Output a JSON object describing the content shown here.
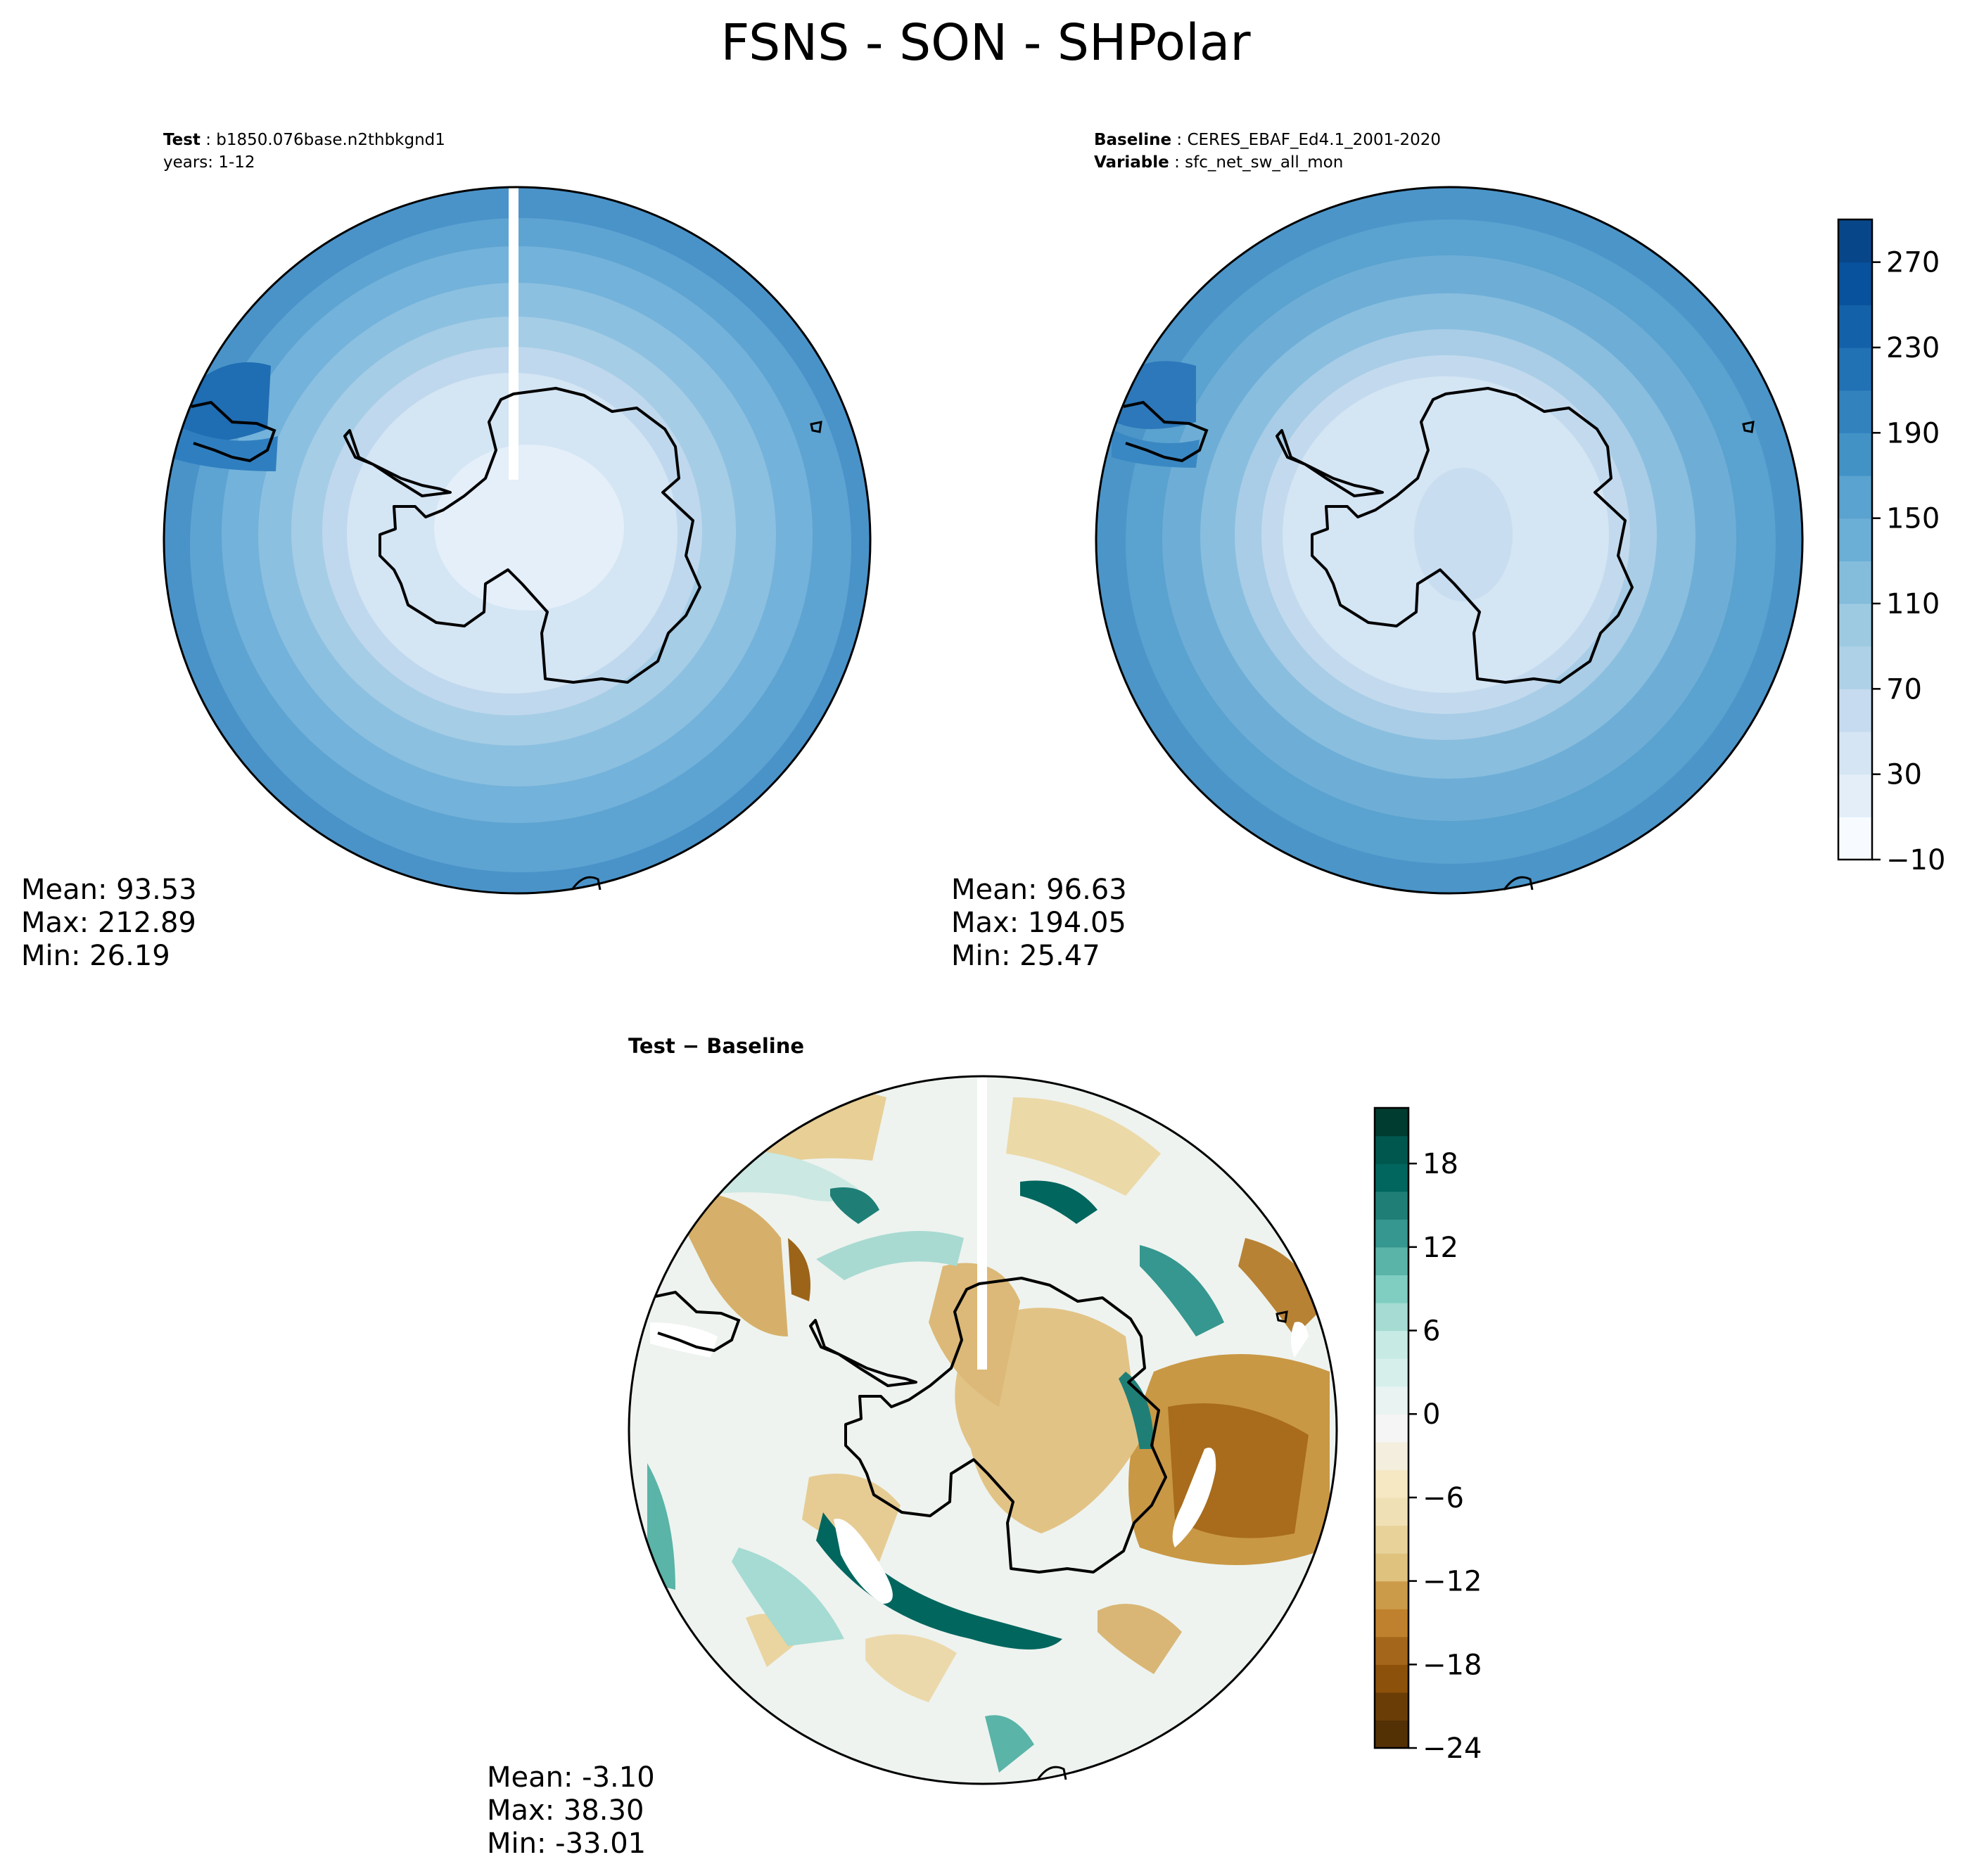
{
  "title": "FSNS - SON - SHPolar",
  "panels": {
    "test": {
      "label_key": "Test",
      "label_value": "b1850.076base.n2thbkgnd1",
      "years": "years: 1-12",
      "stats": {
        "mean": "Mean: 93.53",
        "max": "Max: 212.89",
        "min": "Min: 26.19"
      }
    },
    "baseline": {
      "label_key": "Baseline",
      "label_value": "CERES_EBAF_Ed4.1_2001-2020",
      "variable_key": "Variable",
      "variable_value": "sfc_net_sw_all_mon",
      "stats": {
        "mean": "Mean: 96.63",
        "max": "Max: 194.05",
        "min": "Min: 25.47"
      }
    },
    "diff": {
      "title": "Test − Baseline",
      "stats": {
        "mean": "Mean: -3.10",
        "max": "Max: 38.30",
        "min": "Min: -33.01"
      }
    }
  },
  "chart_data": [
    {
      "type": "heatmap",
      "projection": "south-polar-stereographic",
      "title": "Test",
      "colormap": "Blues",
      "stats": {
        "mean": 93.53,
        "max": 212.89,
        "min": 26.19
      }
    },
    {
      "type": "heatmap",
      "projection": "south-polar-stereographic",
      "title": "Baseline",
      "colormap": "Blues",
      "stats": {
        "mean": 96.63,
        "max": 194.05,
        "min": 25.47
      },
      "colorbar": {
        "range": [
          -10,
          290
        ],
        "levels": [
          -10,
          10,
          30,
          50,
          70,
          90,
          110,
          130,
          150,
          170,
          190,
          210,
          230,
          250,
          270,
          290
        ],
        "ticks": [
          -10,
          30,
          70,
          110,
          150,
          190,
          230,
          270
        ],
        "tick_labels": [
          "−10",
          "30",
          "70",
          "110",
          "150",
          "190",
          "230",
          "270"
        ],
        "colors": [
          "#f7fbff",
          "#e3eef9",
          "#d5e5f4",
          "#c6dbef",
          "#afd1e7",
          "#9ecae1",
          "#84bcdb",
          "#6baed6",
          "#5aa2cf",
          "#4292c6",
          "#3282be",
          "#2171b5",
          "#1361a9",
          "#08519c",
          "#08468a",
          "#08306b"
        ]
      }
    },
    {
      "type": "heatmap",
      "projection": "south-polar-stereographic",
      "title": "Test − Baseline",
      "colormap": "BrBG",
      "stats": {
        "mean": -3.1,
        "max": 38.3,
        "min": -33.01
      },
      "colorbar": {
        "range": [
          -24,
          22
        ],
        "levels": [
          -24,
          -22,
          -20,
          -18,
          -16,
          -14,
          -12,
          -10,
          -8,
          -6,
          -4,
          -2,
          0,
          2,
          4,
          6,
          8,
          10,
          12,
          14,
          16,
          18,
          20,
          22
        ],
        "ticks": [
          -24,
          -18,
          -12,
          -6,
          0,
          6,
          12,
          18
        ],
        "tick_labels": [
          "−24",
          "−18",
          "−12",
          "−6",
          "0",
          "6",
          "12",
          "18"
        ],
        "colors": [
          "#543005",
          "#6a3d07",
          "#8c510a",
          "#a4661a",
          "#bf812d",
          "#cc9b49",
          "#dfc27d",
          "#e8d29a",
          "#f0e0b5",
          "#f6e8c3",
          "#f3eede",
          "#f5f5f5",
          "#e9f3f1",
          "#d6efeb",
          "#c7eae5",
          "#a5dbd2",
          "#80cdc1",
          "#5ab4a8",
          "#35978f",
          "#1f7f76",
          "#01665e",
          "#00574d",
          "#003c30"
        ]
      }
    }
  ]
}
